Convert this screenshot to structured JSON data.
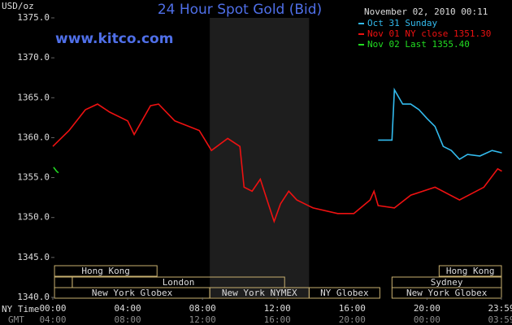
{
  "chart_data": {
    "type": "line",
    "title": "24 Hour Spot Gold (Bid)",
    "site": "www.kitco.com",
    "timestamp": "November 02, 2010 00:11",
    "y_label": "USD/oz",
    "x_label": "NY Time",
    "x2_label": "GMT",
    "xlim": [
      0,
      23.98
    ],
    "ylim": [
      1340,
      1375
    ],
    "xticks": [
      {
        "value": 0,
        "label": "00:00"
      },
      {
        "value": 4,
        "label": "04:00"
      },
      {
        "value": 8,
        "label": "08:00"
      },
      {
        "value": 12,
        "label": "12:00"
      },
      {
        "value": 16,
        "label": "16:00"
      },
      {
        "value": 20,
        "label": "20:00"
      },
      {
        "value": 23.98,
        "label": "23:59"
      }
    ],
    "gmt_tick_labels": [
      "04:00",
      "08:00",
      "12:00",
      "16:00",
      "20:00",
      "00:00",
      "03:59"
    ],
    "yticks": [
      {
        "value": 1340,
        "label": "1340.0"
      },
      {
        "value": 1345,
        "label": "1345.0"
      },
      {
        "value": 1350,
        "label": "1350.0"
      },
      {
        "value": 1355,
        "label": "1355.0"
      },
      {
        "value": 1360,
        "label": "1360.0"
      },
      {
        "value": 1365,
        "label": "1365.0"
      },
      {
        "value": 1370,
        "label": "1370.0"
      },
      {
        "value": 1375,
        "label": "1375.0"
      }
    ],
    "series": [
      {
        "name": "Oct 31 Sunday",
        "color": "#33bbee",
        "x": [
          17.39,
          18.13,
          18.26,
          18.7,
          19.13,
          19.57,
          20,
          20.43,
          20.87,
          21.3,
          21.74,
          22.17,
          22.83,
          23.48,
          24
        ],
        "values": [
          1359.7,
          1359.7,
          1366.0,
          1364.2,
          1364.2,
          1363.5,
          1362.4,
          1361.4,
          1358.9,
          1358.4,
          1357.3,
          1357.9,
          1357.7,
          1358.4,
          1358.1
        ]
      },
      {
        "name": "Nov 01 NY close 1351.30",
        "color": "#ee1111",
        "x": [
          0,
          0.87,
          1.74,
          2.39,
          3.04,
          4,
          4.35,
          5.22,
          5.65,
          6.52,
          7.83,
          8.48,
          9.35,
          10,
          10.22,
          10.65,
          11.09,
          11.52,
          11.83,
          12.17,
          12.61,
          13.04,
          13.91,
          15.22,
          16.09,
          16.96,
          17.17,
          17.39,
          18.26,
          19.13,
          20.43,
          21.74,
          23.04,
          23.78,
          24
        ],
        "values": [
          1358.9,
          1360.9,
          1363.5,
          1364.2,
          1363.2,
          1362.1,
          1360.4,
          1364.0,
          1364.2,
          1362.1,
          1360.9,
          1358.4,
          1359.9,
          1358.9,
          1353.8,
          1353.3,
          1354.8,
          1351.7,
          1349.5,
          1351.7,
          1353.3,
          1352.2,
          1351.2,
          1350.5,
          1350.5,
          1352.2,
          1353.3,
          1351.5,
          1351.2,
          1352.8,
          1353.8,
          1352.2,
          1353.8,
          1356.1,
          1355.8
        ]
      },
      {
        "name": "Nov 02 Last 1355.40",
        "color": "#22dd22",
        "x": [
          0.04,
          0.2,
          0.3
        ],
        "values": [
          1356.3,
          1355.8,
          1355.6
        ]
      }
    ],
    "session_rows": [
      [
        {
          "name": "Hong Kong",
          "start": 0.09,
          "end": 5.57
        },
        {
          "name": "Hong Kong",
          "start": 20.65,
          "end": 23.98
        }
      ],
      [
        {
          "name": null,
          "start": 0.09,
          "end": 1.04
        },
        {
          "name": "London",
          "start": 1.04,
          "end": 12.39
        },
        {
          "name": "Sydney",
          "start": 18.13,
          "end": 23.98
        }
      ],
      [
        {
          "name": "New York Globex",
          "start": 0.09,
          "end": 8.39
        },
        {
          "name": "New York NYMEX",
          "start": 8.39,
          "end": 13.7,
          "shade": true
        },
        {
          "name": "NY Globex",
          "start": 13.7,
          "end": 17.48
        },
        {
          "name": "New York Globex",
          "start": 18.13,
          "end": 23.98
        }
      ]
    ]
  }
}
